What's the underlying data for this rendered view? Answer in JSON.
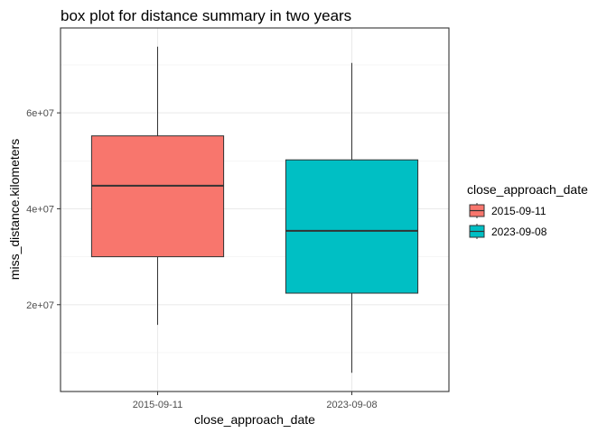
{
  "chart_data": {
    "type": "box",
    "title": "box plot for distance summary in two years",
    "xlabel": "close_approach_date",
    "ylabel": "miss_distance.kilometers",
    "categories": [
      "2015-09-11",
      "2023-09-08"
    ],
    "boxes": [
      {
        "category": "2015-09-11",
        "min": 15800000,
        "q1": 30000000,
        "median": 44800000,
        "q3": 55200000,
        "max": 73800000,
        "fill": "#F8766D"
      },
      {
        "category": "2023-09-08",
        "min": 5800000,
        "q1": 22400000,
        "median": 35400000,
        "q3": 50200000,
        "max": 70400000,
        "fill": "#00BFC4"
      }
    ],
    "y_ticks": [
      20000000,
      40000000,
      60000000
    ],
    "y_tick_labels": [
      "2e+07",
      "4e+07",
      "6e+07"
    ],
    "ylim": [
      1900000,
      77700000
    ],
    "grid": true,
    "legend": {
      "title": "close_approach_date",
      "position": "right",
      "entries": [
        "2015-09-11",
        "2023-09-08"
      ]
    }
  }
}
